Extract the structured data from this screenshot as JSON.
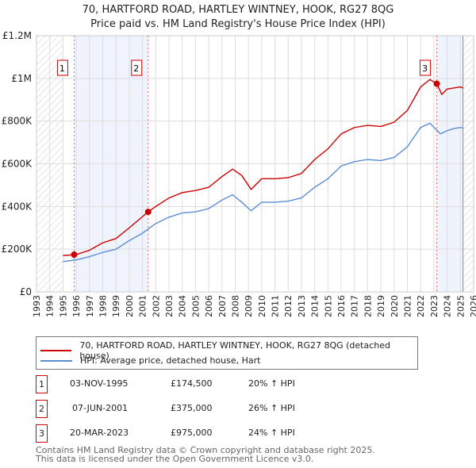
{
  "title": "70, HARTFORD ROAD, HARTLEY WINTNEY, HOOK, RG27 8QG",
  "subtitle": "Price paid vs. HM Land Registry's House Price Index (HPI)",
  "legend": {
    "red": "70, HARTFORD ROAD, HARTLEY WINTNEY, HOOK, RG27 8QG (detached house)",
    "blue": "HPI: Average price, detached house, Hart"
  },
  "sales": [
    {
      "n": "1",
      "date": "03-NOV-1995",
      "price": "£174,500",
      "hpi": "20% ↑ HPI"
    },
    {
      "n": "2",
      "date": "07-JUN-2001",
      "price": "£375,000",
      "hpi": "26% ↑ HPI"
    },
    {
      "n": "3",
      "date": "20-MAR-2023",
      "price": "£975,000",
      "hpi": "24% ↑ HPI"
    }
  ],
  "footer": [
    "Contains HM Land Registry data © Crown copyright and database right 2025.",
    "This data is licensed under the Open Government Licence v3.0."
  ],
  "chart_data": {
    "type": "line",
    "xlim": [
      1993,
      2026
    ],
    "ylim": [
      0,
      1200000
    ],
    "yticks": [
      {
        "v": 0,
        "l": "£0"
      },
      {
        "v": 200000,
        "l": "£200K"
      },
      {
        "v": 400000,
        "l": "£400K"
      },
      {
        "v": 600000,
        "l": "£600K"
      },
      {
        "v": 800000,
        "l": "£800K"
      },
      {
        "v": 1000000,
        "l": "£1M"
      },
      {
        "v": 1200000,
        "l": "£1.2M"
      }
    ],
    "xticks": [
      1993,
      1994,
      1995,
      1996,
      1997,
      1998,
      1999,
      2000,
      2001,
      2002,
      2003,
      2004,
      2005,
      2006,
      2007,
      2008,
      2009,
      2010,
      2011,
      2012,
      2013,
      2014,
      2015,
      2016,
      2017,
      2018,
      2019,
      2020,
      2021,
      2022,
      2023,
      2024,
      2025,
      2026
    ],
    "sale_markers": [
      {
        "label": "1",
        "x": 1995.84,
        "y": 174500
      },
      {
        "label": "2",
        "x": 2001.43,
        "y": 375000
      },
      {
        "label": "3",
        "x": 2023.22,
        "y": 975000
      }
    ],
    "colors": {
      "red": "#cc0000",
      "blue": "#5b8fd4"
    },
    "series": [
      {
        "name": "70, HARTFORD ROAD (detached house)",
        "color": "#cc0000",
        "x": [
          1995.0,
          1995.84,
          1996,
          1997,
          1998,
          1999,
          2000,
          2001.43,
          2002,
          2003,
          2004,
          2005,
          2006,
          2007,
          2007.8,
          2008.5,
          2009.2,
          2010,
          2011,
          2012,
          2013,
          2014,
          2015,
          2016,
          2017,
          2018,
          2019,
          2020,
          2021,
          2022,
          2022.7,
          2023.22,
          2023.6,
          2024,
          2024.5,
          2025,
          2025.2
        ],
        "y": [
          170000,
          174500,
          175000,
          195000,
          230000,
          250000,
          300000,
          375000,
          400000,
          440000,
          465000,
          475000,
          490000,
          540000,
          575000,
          545000,
          480000,
          530000,
          530000,
          535000,
          555000,
          620000,
          670000,
          740000,
          770000,
          780000,
          775000,
          795000,
          850000,
          960000,
          995000,
          975000,
          925000,
          950000,
          955000,
          960000,
          955000
        ]
      },
      {
        "name": "HPI: Average price, detached house, Hart",
        "color": "#5b8fd4",
        "x": [
          1995.0,
          1996,
          1997,
          1998,
          1999,
          2000,
          2001,
          2002,
          2003,
          2004,
          2005,
          2006,
          2007,
          2007.8,
          2008.5,
          2009.2,
          2010,
          2011,
          2012,
          2013,
          2014,
          2015,
          2016,
          2017,
          2018,
          2019,
          2020,
          2021,
          2022,
          2022.7,
          2023.5,
          2024,
          2024.5,
          2025,
          2025.2
        ],
        "y": [
          142000,
          150000,
          165000,
          185000,
          200000,
          240000,
          275000,
          320000,
          350000,
          370000,
          375000,
          390000,
          430000,
          455000,
          420000,
          380000,
          420000,
          420000,
          425000,
          440000,
          490000,
          530000,
          590000,
          610000,
          620000,
          615000,
          630000,
          680000,
          770000,
          790000,
          740000,
          755000,
          765000,
          770000,
          768000
        ]
      }
    ]
  }
}
